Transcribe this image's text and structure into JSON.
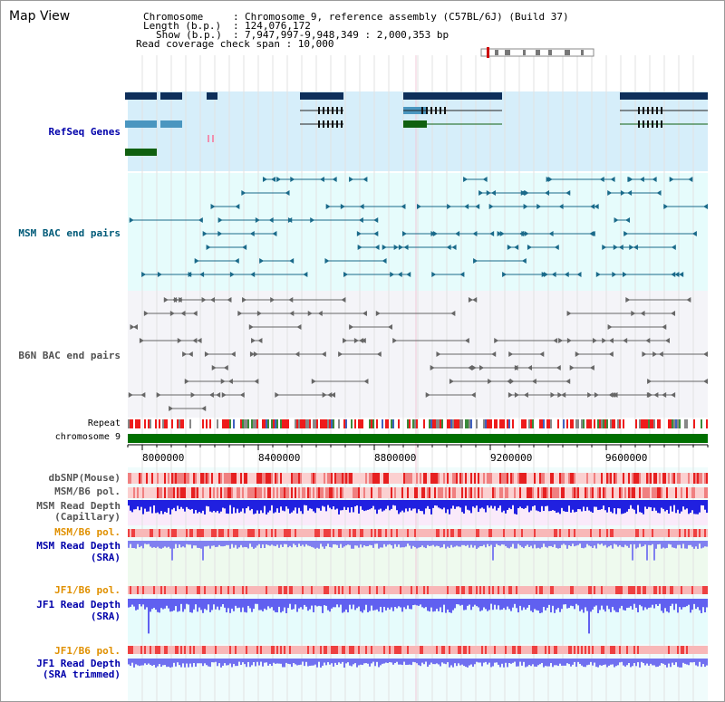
{
  "title": "Map View",
  "header": {
    "l1_key": "Chromosome",
    "l1_val": "Chromosome 9, reference assembly (C57BL/6J) (Build 37)",
    "l2_key": "Length (b.p.)",
    "l2_val": "124,076,172",
    "l3_key": "Show (b.p.)",
    "l3_val": "7,947,997-9,948,349 : 2,000,353 bp",
    "l4": "Read coverage check span : 10,000"
  },
  "tracks": {
    "refseq": "RefSeq Genes",
    "msm_bac": "MSM BAC end pairs",
    "b6n_bac": "B6N BAC end pairs",
    "repeat": "Repeat",
    "chromosome": "chromosome 9",
    "dbsnp": "dbSNP(Mouse)",
    "msm_b6_pol_1": "MSM/B6 pol.",
    "msm_depth_cap_1": "MSM Read Depth",
    "msm_depth_cap_2": "(Capillary)",
    "msm_b6_pol_2": "MSM/B6 pol.",
    "msm_depth_sra_1": "MSM Read Depth",
    "msm_depth_sra_2": "(SRA)",
    "jf1_b6_pol_1": "JF1/B6 pol.",
    "jf1_depth_sra_1": "JF1 Read Depth",
    "jf1_depth_sra_2": "(SRA)",
    "jf1_b6_pol_2": "JF1/B6 pol.",
    "jf1_depth_trim_1": "JF1 Read Depth",
    "jf1_depth_trim_2": "(SRA trimmed)"
  },
  "axis": {
    "ticks": [
      "8000000",
      "8400000",
      "8800000",
      "9200000",
      "9600000"
    ]
  },
  "colors": {
    "refseq_label": "#0000aa",
    "msm_bac_label": "#005a78",
    "b6n_label": "#505050",
    "orange_label": "#e09000",
    "blue_label": "#0000aa"
  }
}
